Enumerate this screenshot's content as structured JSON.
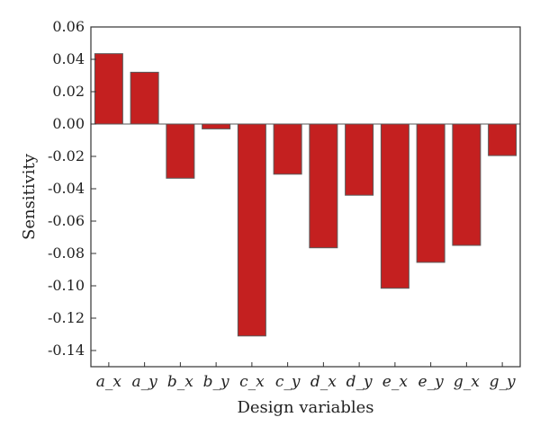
{
  "chart_data": {
    "type": "bar",
    "title": "",
    "xlabel": "Design variables",
    "ylabel": "Sensitivity",
    "categories": [
      "a_x",
      "a_y",
      "b_x",
      "b_y",
      "c_x",
      "c_y",
      "d_x",
      "d_y",
      "e_x",
      "e_y",
      "g_x",
      "g_y"
    ],
    "values": [
      0.0435,
      0.032,
      -0.0335,
      -0.003,
      -0.131,
      -0.031,
      -0.0765,
      -0.044,
      -0.1015,
      -0.0855,
      -0.075,
      -0.0195
    ],
    "ylim": [
      -0.15,
      0.06
    ],
    "yticks": [
      0.06,
      0.04,
      0.02,
      0.0,
      -0.02,
      -0.04,
      -0.06,
      -0.08,
      -0.1,
      -0.12,
      -0.14
    ],
    "ytick_labels": [
      "0.06",
      "0.04",
      "0.02",
      "0.00",
      "-0.02",
      "-0.04",
      "-0.06",
      "-0.08",
      "-0.10",
      "-0.12",
      "-0.14"
    ],
    "grid": false,
    "legend": "none",
    "colors": {
      "bar_fill": "#c42020",
      "bar_edge": "#5a5a5a",
      "axis": "#333333"
    }
  }
}
